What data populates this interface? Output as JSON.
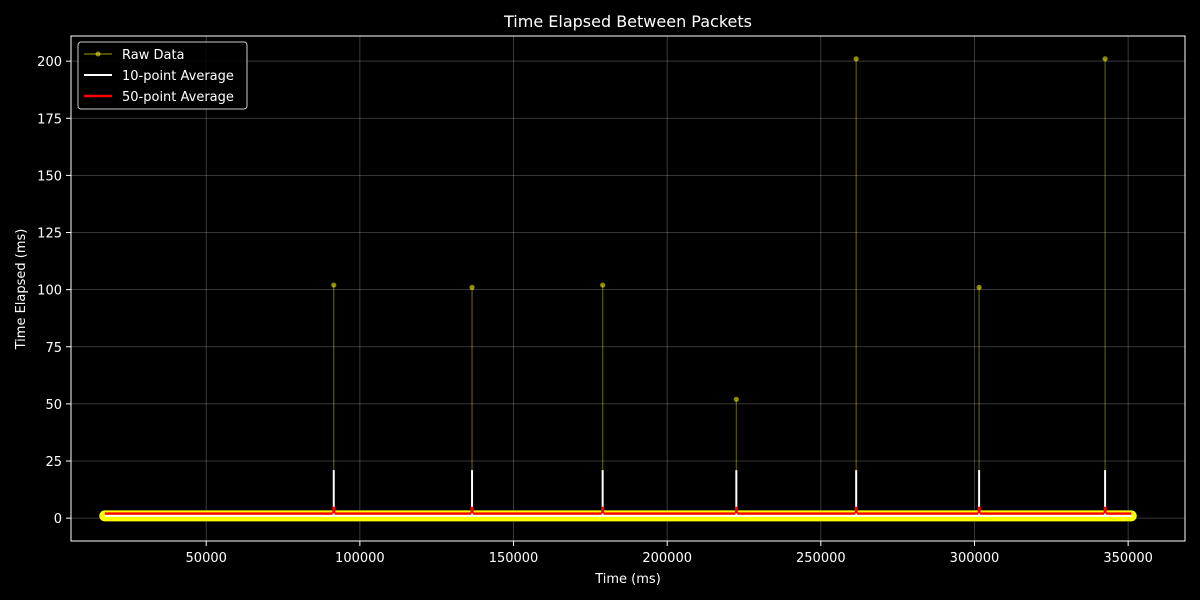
{
  "chart_data": {
    "type": "line",
    "title": "Time Elapsed Between Packets",
    "xlabel": "Time (ms)",
    "ylabel": "Time Elapsed (ms)",
    "xlim": [
      6000,
      368500
    ],
    "ylim": [
      -10,
      211
    ],
    "x_ticks": [
      50000,
      100000,
      150000,
      200000,
      250000,
      300000,
      350000
    ],
    "y_ticks": [
      0,
      25,
      50,
      75,
      100,
      125,
      150,
      175,
      200
    ],
    "grid": true,
    "legend_position": "top-left",
    "x_range": [
      17000,
      351000
    ],
    "baseline_value": 1,
    "series": [
      {
        "name": "Raw Data",
        "color": "#ffff00",
        "baseline": 1,
        "spikes": [
          {
            "x": 91500,
            "y": 102
          },
          {
            "x": 136500,
            "y": 101
          },
          {
            "x": 179000,
            "y": 102
          },
          {
            "x": 222500,
            "y": 52
          },
          {
            "x": 261500,
            "y": 201
          },
          {
            "x": 301500,
            "y": 101
          },
          {
            "x": 342500,
            "y": 201
          }
        ]
      },
      {
        "name": "10-point Average",
        "color": "#ffffff",
        "baseline": 1,
        "spikes": [
          {
            "x": 91500,
            "y": 21
          },
          {
            "x": 136500,
            "y": 21
          },
          {
            "x": 179000,
            "y": 21
          },
          {
            "x": 222500,
            "y": 21
          },
          {
            "x": 261500,
            "y": 21
          },
          {
            "x": 301500,
            "y": 21
          },
          {
            "x": 342500,
            "y": 21
          }
        ]
      },
      {
        "name": "50-point Average",
        "color": "#ff0000",
        "baseline": 2,
        "spikes": [
          {
            "x": 91500,
            "y": 5
          },
          {
            "x": 136500,
            "y": 5
          },
          {
            "x": 179000,
            "y": 5
          },
          {
            "x": 222500,
            "y": 5
          },
          {
            "x": 261500,
            "y": 5
          },
          {
            "x": 301500,
            "y": 5
          },
          {
            "x": 342500,
            "y": 5
          }
        ]
      }
    ]
  }
}
